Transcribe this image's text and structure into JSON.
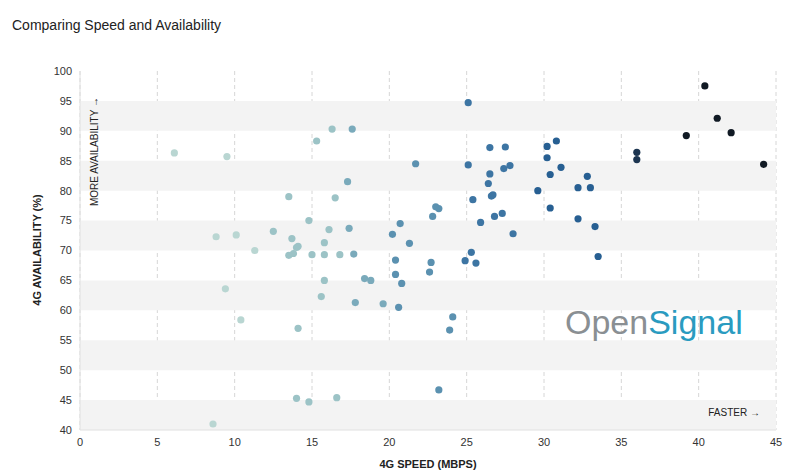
{
  "chart_data": {
    "type": "scatter",
    "title": "Comparing Speed and Availability",
    "x_label": "4G SPEED (MBPS)",
    "y_label": "4G AVAILABILITY (%)",
    "annotations": [
      "MORE AVAILABILITY →",
      "FASTER →",
      "OpenSignal"
    ],
    "x": [
      6.1,
      9.5,
      8.8,
      10.1,
      9.4,
      10.4,
      11.3,
      8.6,
      12.5,
      13.5,
      13.7,
      13.5,
      13.8,
      14,
      14.1,
      14.1,
      14,
      14.8,
      14.8,
      15,
      15.3,
      16.3,
      15.6,
      15.8,
      15.8,
      15.8,
      16.1,
      16.5,
      16.6,
      16.8,
      17.3,
      17.4,
      17.6,
      17.8,
      17.7,
      18.4,
      18.8,
      19.6,
      20.2,
      20.4,
      20.4,
      20.6,
      20.7,
      20.8,
      21.3,
      21.7,
      22.6,
      22.7,
      22.8,
      23,
      23.2,
      23.2,
      23.9,
      24.1,
      25.1,
      25.1,
      24.9,
      25.3,
      25.4,
      25.6,
      25.9,
      26.4,
      26.5,
      26.5,
      26.6,
      26.7,
      26.8,
      27.3,
      27.4,
      27.5,
      27.8,
      28,
      29.6,
      30.2,
      30.2,
      30.4,
      30.4,
      30.8,
      31.1,
      32.2,
      32.2,
      32.8,
      33,
      33.3,
      33.5,
      36,
      36,
      39.2,
      40.4,
      41.2,
      42.1,
      44.2
    ],
    "values": [
      86.3,
      85.7,
      72.3,
      72.6,
      63.6,
      58.4,
      70,
      41,
      73.2,
      79,
      72,
      69.2,
      69.5,
      70.5,
      70.7,
      57,
      45.3,
      44.7,
      75,
      69.3,
      88.3,
      90.3,
      62.3,
      65,
      71.3,
      69.3,
      73.5,
      78.8,
      45.4,
      69.3,
      81.5,
      73.7,
      90.3,
      61.3,
      69.4,
      65.3,
      65,
      61.1,
      72.7,
      68.4,
      66,
      60.5,
      74.5,
      64.5,
      71.2,
      84.5,
      66.4,
      68,
      75.7,
      77.3,
      77,
      46.7,
      56.7,
      58.9,
      94.7,
      84.3,
      68.3,
      69.7,
      78.5,
      67.9,
      74.7,
      81.2,
      87.2,
      82.8,
      79.1,
      79.3,
      75.7,
      76.2,
      83.7,
      87.3,
      84.2,
      72.8,
      80,
      87.4,
      85.5,
      82.7,
      77.1,
      88.3,
      83.9,
      80.5,
      75.3,
      82.4,
      80.5,
      74,
      69,
      86.4,
      85.2,
      89.2,
      97.5,
      92.1,
      89.7,
      84.4
    ],
    "colors": [
      "#b9d6d2",
      "#b9d6d2",
      "#b9d6d2",
      "#b9d6d2",
      "#b9d6d2",
      "#b9d6d2",
      "#b9d6d2",
      "#b9d6d2",
      "#9cc3c6",
      "#9cc3c6",
      "#9cc3c6",
      "#9cc3c6",
      "#9cc3c6",
      "#9cc3c6",
      "#9cc3c6",
      "#9cc3c6",
      "#9cc3c6",
      "#9cc3c6",
      "#9cc3c6",
      "#9cc3c6",
      "#9cc3c6",
      "#9cc3c6",
      "#9cc3c6",
      "#9cc3c6",
      "#9cc3c6",
      "#9cc3c6",
      "#9cc3c6",
      "#9cc3c6",
      "#9cc3c6",
      "#9cc3c6",
      "#7aaabb",
      "#7aaabb",
      "#7aaabb",
      "#7aaabb",
      "#7aaabb",
      "#7aaabb",
      "#7aaabb",
      "#7aaabb",
      "#5b91b0",
      "#5b91b0",
      "#5b91b0",
      "#5b91b0",
      "#5b91b0",
      "#5b91b0",
      "#5b91b0",
      "#5b91b0",
      "#5b91b0",
      "#5b91b0",
      "#5b91b0",
      "#5b91b0",
      "#5b91b0",
      "#5b91b0",
      "#5b91b0",
      "#5b91b0",
      "#3d75a3",
      "#3d75a3",
      "#3d75a3",
      "#3d75a3",
      "#3d75a3",
      "#3d75a3",
      "#3d75a3",
      "#3d75a3",
      "#3d75a3",
      "#3d75a3",
      "#3d75a3",
      "#3d75a3",
      "#3d75a3",
      "#3d75a3",
      "#3d75a3",
      "#3d75a3",
      "#3d75a3",
      "#3d75a3",
      "#275f92",
      "#275f92",
      "#275f92",
      "#275f92",
      "#275f92",
      "#275f92",
      "#275f92",
      "#275f92",
      "#275f92",
      "#275f92",
      "#275f92",
      "#275f92",
      "#275f92",
      "#1c3550",
      "#1c3550",
      "#111a24",
      "#111a24",
      "#111a24",
      "#111a24",
      "#111a24"
    ],
    "xlim": [
      0,
      45
    ],
    "ylim": [
      40,
      100
    ],
    "xticks": [
      0,
      5,
      10,
      15,
      20,
      25,
      30,
      35,
      40,
      45
    ],
    "yticks": [
      40,
      45,
      50,
      55,
      60,
      65,
      70,
      75,
      80,
      85,
      90,
      95,
      100
    ],
    "grid": true
  }
}
